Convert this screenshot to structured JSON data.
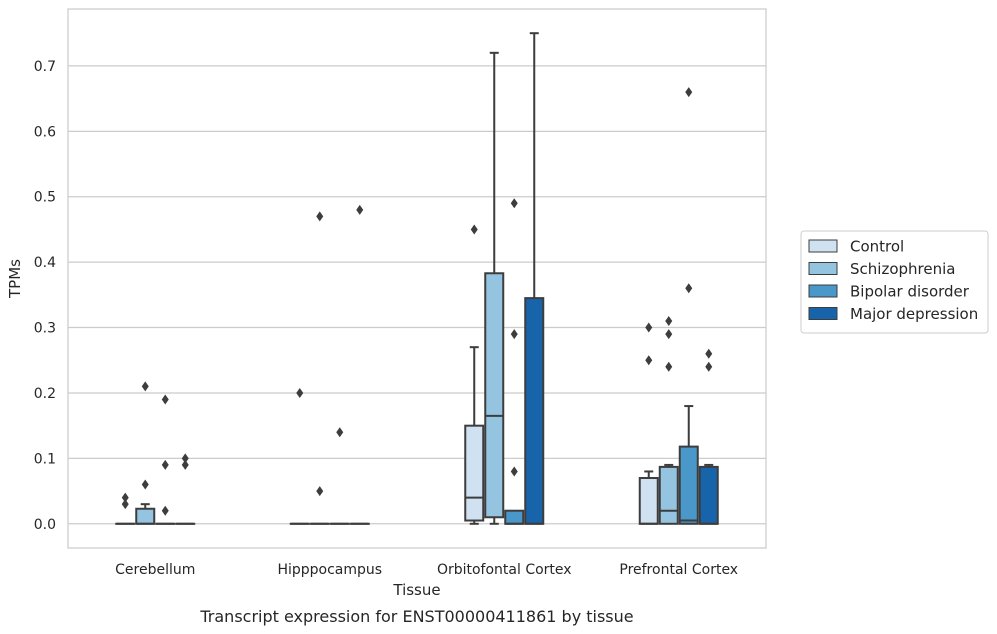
{
  "caption": "Transcript expression for ENST00000411861 by tissue",
  "chart_data": {
    "type": "box",
    "xlabel": "Tissue",
    "ylabel": "TPMs",
    "ylim": [
      -0.037,
      0.787
    ],
    "yticks": [
      0.0,
      0.1,
      0.2,
      0.3,
      0.4,
      0.5,
      0.6,
      0.7
    ],
    "ytick_labels": [
      "0.0",
      "0.1",
      "0.2",
      "0.3",
      "0.4",
      "0.5",
      "0.6",
      "0.7"
    ],
    "grid": "horizontal",
    "legend_position": "right",
    "categories": [
      "Cerebellum",
      "Hipppocampus",
      "Orbitofontal Cortex",
      "Prefrontal Cortex"
    ],
    "series": [
      {
        "name": "Control",
        "color": "#d0e1f2",
        "boxes": [
          {
            "whislo": 0.0,
            "q1": 0.0,
            "med": 0.0,
            "q3": 0.0,
            "whishi": 0.0,
            "fliers": [
              0.04,
              0.03
            ]
          },
          {
            "whislo": 0.0,
            "q1": 0.0,
            "med": 0.0,
            "q3": 0.0,
            "whishi": 0.0,
            "fliers": [
              0.2
            ]
          },
          {
            "whislo": 0.0,
            "q1": 0.005,
            "med": 0.04,
            "q3": 0.15,
            "whishi": 0.27,
            "fliers": [
              0.45
            ]
          },
          {
            "whislo": 0.0,
            "q1": 0.0,
            "med": 0.0,
            "q3": 0.07,
            "whishi": 0.08,
            "fliers": [
              0.3,
              0.25
            ]
          }
        ]
      },
      {
        "name": "Schizophrenia",
        "color": "#94c4df",
        "boxes": [
          {
            "whislo": 0.0,
            "q1": 0.0,
            "med": 0.0,
            "q3": 0.023,
            "whishi": 0.03,
            "fliers": [
              0.21,
              0.06
            ]
          },
          {
            "whislo": 0.0,
            "q1": 0.0,
            "med": 0.0,
            "q3": 0.0,
            "whishi": 0.0,
            "fliers": [
              0.47,
              0.05
            ]
          },
          {
            "whislo": 0.0,
            "q1": 0.01,
            "med": 0.165,
            "q3": 0.383,
            "whishi": 0.72,
            "fliers": []
          },
          {
            "whislo": 0.0,
            "q1": 0.0,
            "med": 0.02,
            "q3": 0.087,
            "whishi": 0.09,
            "fliers": [
              0.31,
              0.29,
              0.24
            ]
          }
        ]
      },
      {
        "name": "Bipolar disorder",
        "color": "#4a98c9",
        "boxes": [
          {
            "whislo": 0.0,
            "q1": 0.0,
            "med": 0.0,
            "q3": 0.0,
            "whishi": 0.0,
            "fliers": [
              0.19,
              0.09,
              0.02
            ]
          },
          {
            "whislo": 0.0,
            "q1": 0.0,
            "med": 0.0,
            "q3": 0.0,
            "whishi": 0.0,
            "fliers": [
              0.14
            ]
          },
          {
            "whislo": 0.0,
            "q1": 0.0,
            "med": 0.0,
            "q3": 0.02,
            "whishi": 0.02,
            "fliers": [
              0.49,
              0.29,
              0.08
            ]
          },
          {
            "whislo": 0.0,
            "q1": 0.0,
            "med": 0.005,
            "q3": 0.118,
            "whishi": 0.18,
            "fliers": [
              0.66,
              0.36
            ]
          }
        ]
      },
      {
        "name": "Major depression",
        "color": "#1764ab",
        "boxes": [
          {
            "whislo": 0.0,
            "q1": 0.0,
            "med": 0.0,
            "q3": 0.0,
            "whishi": 0.0,
            "fliers": [
              0.1,
              0.09
            ]
          },
          {
            "whislo": 0.0,
            "q1": 0.0,
            "med": 0.0,
            "q3": 0.0,
            "whishi": 0.0,
            "fliers": [
              0.48
            ]
          },
          {
            "whislo": 0.0,
            "q1": 0.0,
            "med": 0.0,
            "q3": 0.345,
            "whishi": 0.75,
            "fliers": []
          },
          {
            "whislo": 0.0,
            "q1": 0.0,
            "med": 0.0,
            "q3": 0.087,
            "whishi": 0.09,
            "fliers": [
              0.26,
              0.24
            ]
          }
        ]
      }
    ]
  }
}
